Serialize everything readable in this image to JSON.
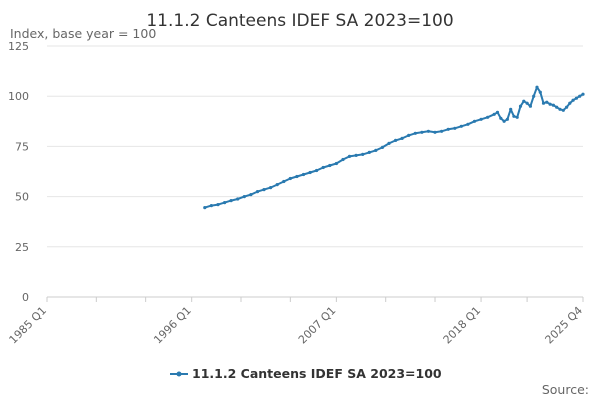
{
  "chart_data": {
    "type": "line",
    "title": "11.1.2 Canteens IDEF SA 2023=100",
    "ylabel": "Index, base year = 100",
    "ylim": [
      0,
      125
    ],
    "yticks": [
      0,
      25,
      50,
      75,
      100,
      125
    ],
    "xticks": [
      "1985 Q1",
      "1996 Q1",
      "2007 Q1",
      "2018 Q1",
      "2025 Q4"
    ],
    "grid": true,
    "legend_position": "bottom",
    "source_label": "Source:",
    "colors": {
      "series": "#2a7ab0",
      "grid": "#e6e6e6",
      "axis": "#cccccc"
    },
    "series": [
      {
        "name": "11.1.2 Canteens IDEF SA 2023=100",
        "points": [
          [
            "1997 Q1",
            44.5
          ],
          [
            "1997 Q3",
            45.5
          ],
          [
            "1998 Q1",
            46.0
          ],
          [
            "1998 Q3",
            47.0
          ],
          [
            "1999 Q1",
            48.0
          ],
          [
            "1999 Q3",
            48.8
          ],
          [
            "2000 Q1",
            50.0
          ],
          [
            "2000 Q3",
            51.0
          ],
          [
            "2001 Q1",
            52.5
          ],
          [
            "2001 Q3",
            53.5
          ],
          [
            "2002 Q1",
            54.5
          ],
          [
            "2002 Q3",
            56.0
          ],
          [
            "2003 Q1",
            57.5
          ],
          [
            "2003 Q3",
            59.0
          ],
          [
            "2004 Q1",
            60.0
          ],
          [
            "2004 Q3",
            61.0
          ],
          [
            "2005 Q1",
            62.0
          ],
          [
            "2005 Q3",
            63.0
          ],
          [
            "2006 Q1",
            64.5
          ],
          [
            "2006 Q3",
            65.5
          ],
          [
            "2007 Q1",
            66.5
          ],
          [
            "2007 Q3",
            68.5
          ],
          [
            "2008 Q1",
            70.0
          ],
          [
            "2008 Q3",
            70.5
          ],
          [
            "2009 Q1",
            71.0
          ],
          [
            "2009 Q3",
            72.0
          ],
          [
            "2010 Q1",
            73.0
          ],
          [
            "2010 Q3",
            74.5
          ],
          [
            "2011 Q1",
            76.5
          ],
          [
            "2011 Q3",
            78.0
          ],
          [
            "2012 Q1",
            79.0
          ],
          [
            "2012 Q3",
            80.5
          ],
          [
            "2013 Q1",
            81.5
          ],
          [
            "2013 Q3",
            82.0
          ],
          [
            "2014 Q1",
            82.5
          ],
          [
            "2014 Q3",
            82.0
          ],
          [
            "2015 Q1",
            82.5
          ],
          [
            "2015 Q3",
            83.5
          ],
          [
            "2016 Q1",
            84.0
          ],
          [
            "2016 Q3",
            85.0
          ],
          [
            "2017 Q1",
            86.0
          ],
          [
            "2017 Q3",
            87.5
          ],
          [
            "2018 Q1",
            88.5
          ],
          [
            "2018 Q3",
            89.5
          ],
          [
            "2019 Q1",
            91.0
          ],
          [
            "2019 Q2",
            92.0
          ],
          [
            "2019 Q3",
            89.0
          ],
          [
            "2019 Q4",
            87.5
          ],
          [
            "2020 Q1",
            88.5
          ],
          [
            "2020 Q2",
            93.5
          ],
          [
            "2020 Q3",
            90.0
          ],
          [
            "2020 Q4",
            89.5
          ],
          [
            "2021 Q1",
            95.0
          ],
          [
            "2021 Q2",
            97.5
          ],
          [
            "2021 Q3",
            96.5
          ],
          [
            "2021 Q4",
            95.0
          ],
          [
            "2022 Q1",
            100.0
          ],
          [
            "2022 Q2",
            104.5
          ],
          [
            "2022 Q3",
            102.0
          ],
          [
            "2022 Q4",
            96.5
          ],
          [
            "2023 Q1",
            97.0
          ],
          [
            "2023 Q2",
            96.0
          ],
          [
            "2023 Q3",
            95.5
          ],
          [
            "2023 Q4",
            94.5
          ],
          [
            "2024 Q1",
            93.5
          ],
          [
            "2024 Q2",
            93.0
          ],
          [
            "2024 Q3",
            94.5
          ],
          [
            "2024 Q4",
            96.5
          ],
          [
            "2025 Q1",
            98.0
          ],
          [
            "2025 Q2",
            99.0
          ],
          [
            "2025 Q3",
            100.0
          ],
          [
            "2025 Q4",
            101.0
          ]
        ]
      }
    ]
  }
}
